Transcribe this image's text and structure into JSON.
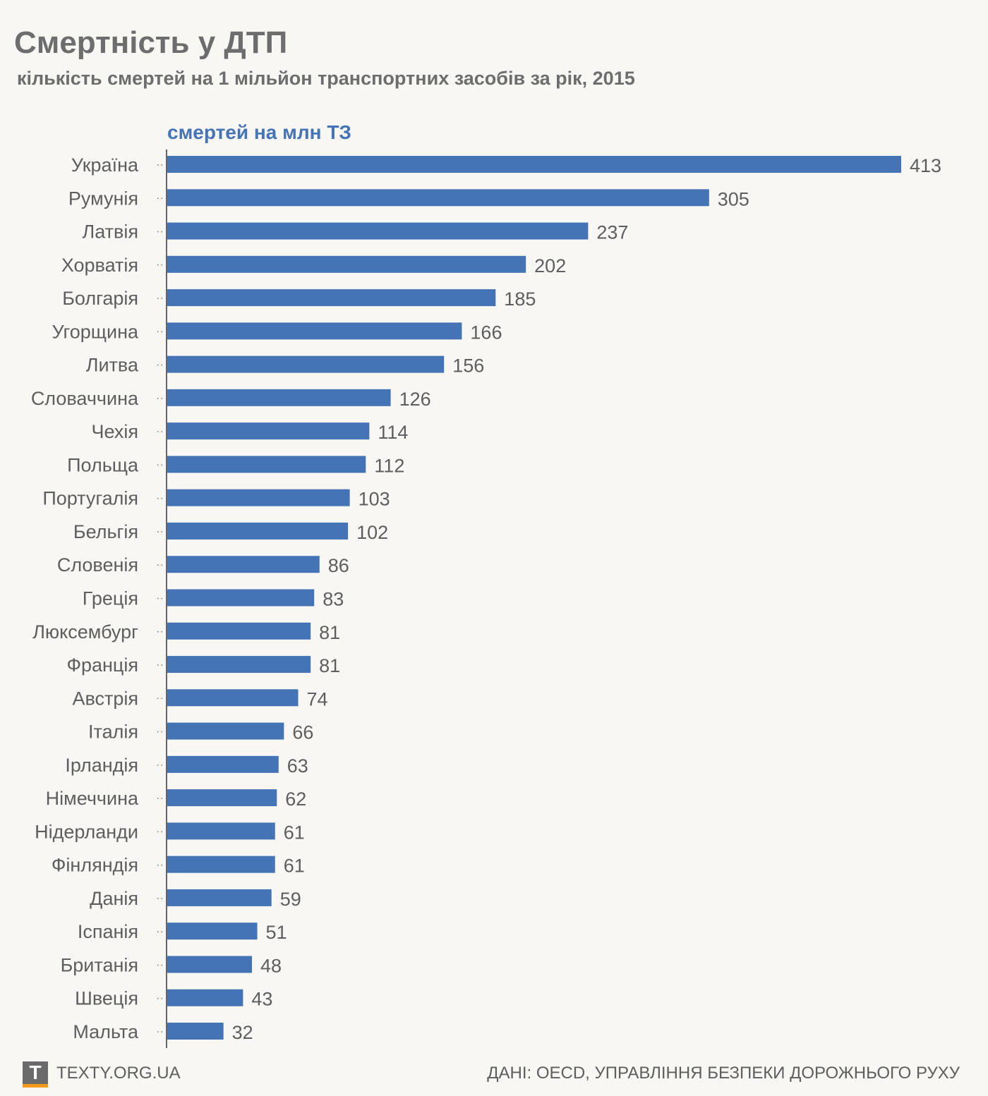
{
  "chart_data": {
    "type": "bar",
    "orientation": "horizontal",
    "title": "Смертність у ДТП",
    "subtitle": "кількість смертей на 1 мільйон транспортних засобів за рік, 2015",
    "series_name": "смертей на млн ТЗ",
    "categories": [
      "Україна",
      "Румунія",
      "Латвія",
      "Хорватія",
      "Болгарія",
      "Угорщина",
      "Литва",
      "Словаччина",
      "Чехія",
      "Польща",
      "Португалія",
      "Бельгія",
      "Словенія",
      "Греція",
      "Люксембург",
      "Франція",
      "Австрія",
      "Італія",
      "Ірландія",
      "Німеччина",
      "Нідерланди",
      "Фінляндія",
      "Данія",
      "Іспанія",
      "Британія",
      "Швеція",
      "Мальта"
    ],
    "values": [
      413,
      305,
      237,
      202,
      185,
      166,
      156,
      126,
      114,
      112,
      103,
      102,
      86,
      83,
      81,
      81,
      74,
      66,
      63,
      62,
      61,
      61,
      59,
      51,
      48,
      43,
      32
    ],
    "xlim": [
      0,
      413
    ],
    "grid": false,
    "bar_color": "#4574b6"
  },
  "footer": {
    "logo": "T",
    "site": "TEXTY.ORG.UA",
    "source": "ДАНІ: OECD, УПРАВЛІННЯ БЕЗПЕКИ ДОРОЖНЬОГО РУХУ"
  }
}
